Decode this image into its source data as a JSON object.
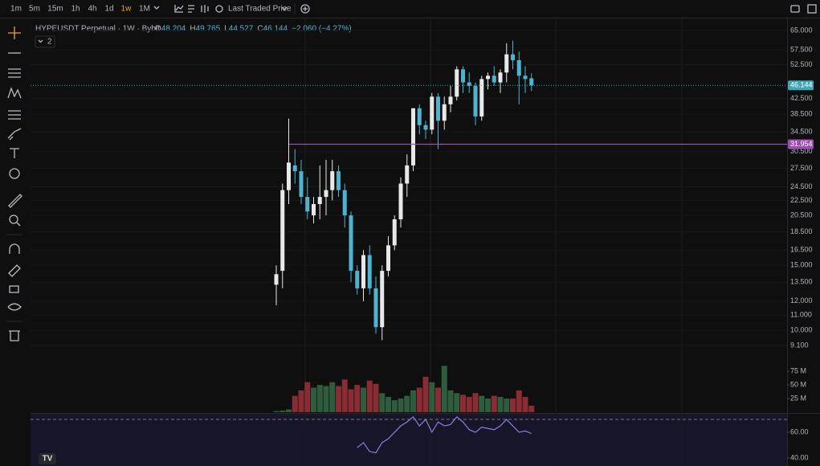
{
  "toolbar": {
    "intervals": [
      "1m",
      "5m",
      "15m",
      "1h",
      "4h",
      "1d",
      "1w",
      "1M"
    ],
    "active_interval": 6,
    "price_source": "Last Traded Price"
  },
  "legend": {
    "symbol": "HYPEUSDT Perpetual · 1W · Bybit",
    "items": [
      {
        "key": "O",
        "value": "48.204"
      },
      {
        "key": "H",
        "value": "49.765"
      },
      {
        "key": "L",
        "value": "44.527"
      },
      {
        "key": "C",
        "value": "46.144"
      }
    ],
    "change": "−2.060 (−4.27%)",
    "indicator_count": "2"
  },
  "chart_data": {
    "type": "candlestick",
    "open": [
      13.3,
      14.5,
      24,
      28,
      27,
      23,
      20.5,
      22,
      23,
      24,
      27,
      24,
      20.5,
      14.5,
      13,
      16,
      13,
      10.2,
      14.5,
      17,
      20,
      25,
      28,
      40,
      36,
      35,
      43,
      37,
      41,
      43,
      51,
      47,
      46,
      38,
      48,
      49,
      47,
      50,
      56,
      54,
      49,
      48.204
    ],
    "high": [
      15,
      25,
      37.5,
      31,
      29,
      26,
      23,
      28,
      29,
      29,
      28,
      25,
      21,
      15,
      16.5,
      17,
      14,
      15,
      18,
      20.5,
      26,
      30,
      40,
      41,
      37,
      44,
      44,
      43,
      46,
      52,
      52,
      50,
      47,
      49,
      50,
      52,
      51,
      60,
      61,
      57,
      52,
      49.765
    ],
    "low": [
      11.7,
      13,
      22,
      25,
      22,
      20,
      19.5,
      20,
      20.5,
      22.5,
      23,
      19,
      13.5,
      12.5,
      12,
      12.5,
      9.8,
      9.4,
      14,
      16.5,
      19,
      23,
      27,
      34,
      33,
      34,
      31,
      35,
      39,
      42,
      44,
      44,
      36,
      37,
      45,
      46,
      44,
      47,
      51,
      41,
      44,
      44.527
    ],
    "close": [
      14.2,
      24,
      28.5,
      27,
      23,
      21,
      22,
      23,
      24,
      27,
      24,
      20.5,
      14.5,
      13,
      16,
      13,
      10.2,
      14.5,
      17,
      20,
      25,
      28,
      40,
      36,
      35,
      43,
      37,
      41,
      43,
      51,
      47,
      46,
      38,
      48,
      49,
      47,
      50,
      56,
      54,
      49,
      48,
      46.144
    ],
    "up_color": "#e8e8e8",
    "down_color": "#4fb3cf",
    "log_scale": true,
    "ylim": [
      8.15,
      70.4
    ],
    "yticks": [
      {
        "value": 65,
        "label": "65.000"
      },
      {
        "value": 57.5,
        "label": "57.500"
      },
      {
        "value": 52.5,
        "label": "52.500"
      },
      {
        "value": 42.5,
        "label": "42.500"
      },
      {
        "value": 38.5,
        "label": "38.500"
      },
      {
        "value": 34.5,
        "label": "34.500"
      },
      {
        "value": 30.5,
        "label": "30.500"
      },
      {
        "value": 27.5,
        "label": "27.500"
      },
      {
        "value": 24.5,
        "label": "24.500"
      },
      {
        "value": 22.5,
        "label": "22.500"
      },
      {
        "value": 20.5,
        "label": "20.500"
      },
      {
        "value": 18.5,
        "label": "18.500"
      },
      {
        "value": 16.5,
        "label": "16.500"
      },
      {
        "value": 15,
        "label": "15.000"
      },
      {
        "value": 13.5,
        "label": "13.500"
      },
      {
        "value": 12,
        "label": "12.000"
      },
      {
        "value": 11,
        "label": "11.000"
      },
      {
        "value": 10,
        "label": "10.000"
      },
      {
        "value": 9.1,
        "label": "9.100"
      }
    ],
    "last_price": {
      "value": 46.144,
      "label": "46.144",
      "color": "#3fa7b8"
    },
    "horizontal_line": {
      "value": 31.954,
      "label": "31.954",
      "color": "#9c4fb0"
    },
    "volume": {
      "values": [
        2,
        3,
        5,
        30,
        40,
        55,
        45,
        50,
        48,
        55,
        48,
        60,
        42,
        50,
        45,
        58,
        52,
        35,
        28,
        22,
        25,
        30,
        40,
        45,
        65,
        55,
        45,
        85,
        40,
        35,
        32,
        28,
        35,
        30,
        25,
        30,
        28,
        25,
        25,
        40,
        28,
        12
      ],
      "up_color": "#2f5c3c",
      "down_color": "#8a2c33",
      "ylim": [
        0,
        90
      ],
      "yticks": [
        {
          "value": 75,
          "label": "75 M"
        },
        {
          "value": 50,
          "label": "50 M"
        },
        {
          "value": 25,
          "label": "25 M"
        }
      ]
    },
    "rsi": {
      "values": [
        null,
        null,
        null,
        null,
        null,
        null,
        null,
        null,
        null,
        null,
        null,
        null,
        null,
        48,
        52,
        45,
        44,
        52,
        55,
        60,
        65,
        68,
        72,
        65,
        70,
        60,
        68,
        65,
        66,
        72,
        68,
        62,
        60,
        64,
        63,
        62,
        65,
        70,
        65,
        60,
        61,
        59
      ],
      "color": "#8b7fd6",
      "ylim": [
        33.75,
        74.4
      ],
      "upper_band": 70,
      "yticks": [
        {
          "value": 60,
          "label": "60.00"
        },
        {
          "value": 40,
          "label": "40.00"
        }
      ]
    }
  }
}
